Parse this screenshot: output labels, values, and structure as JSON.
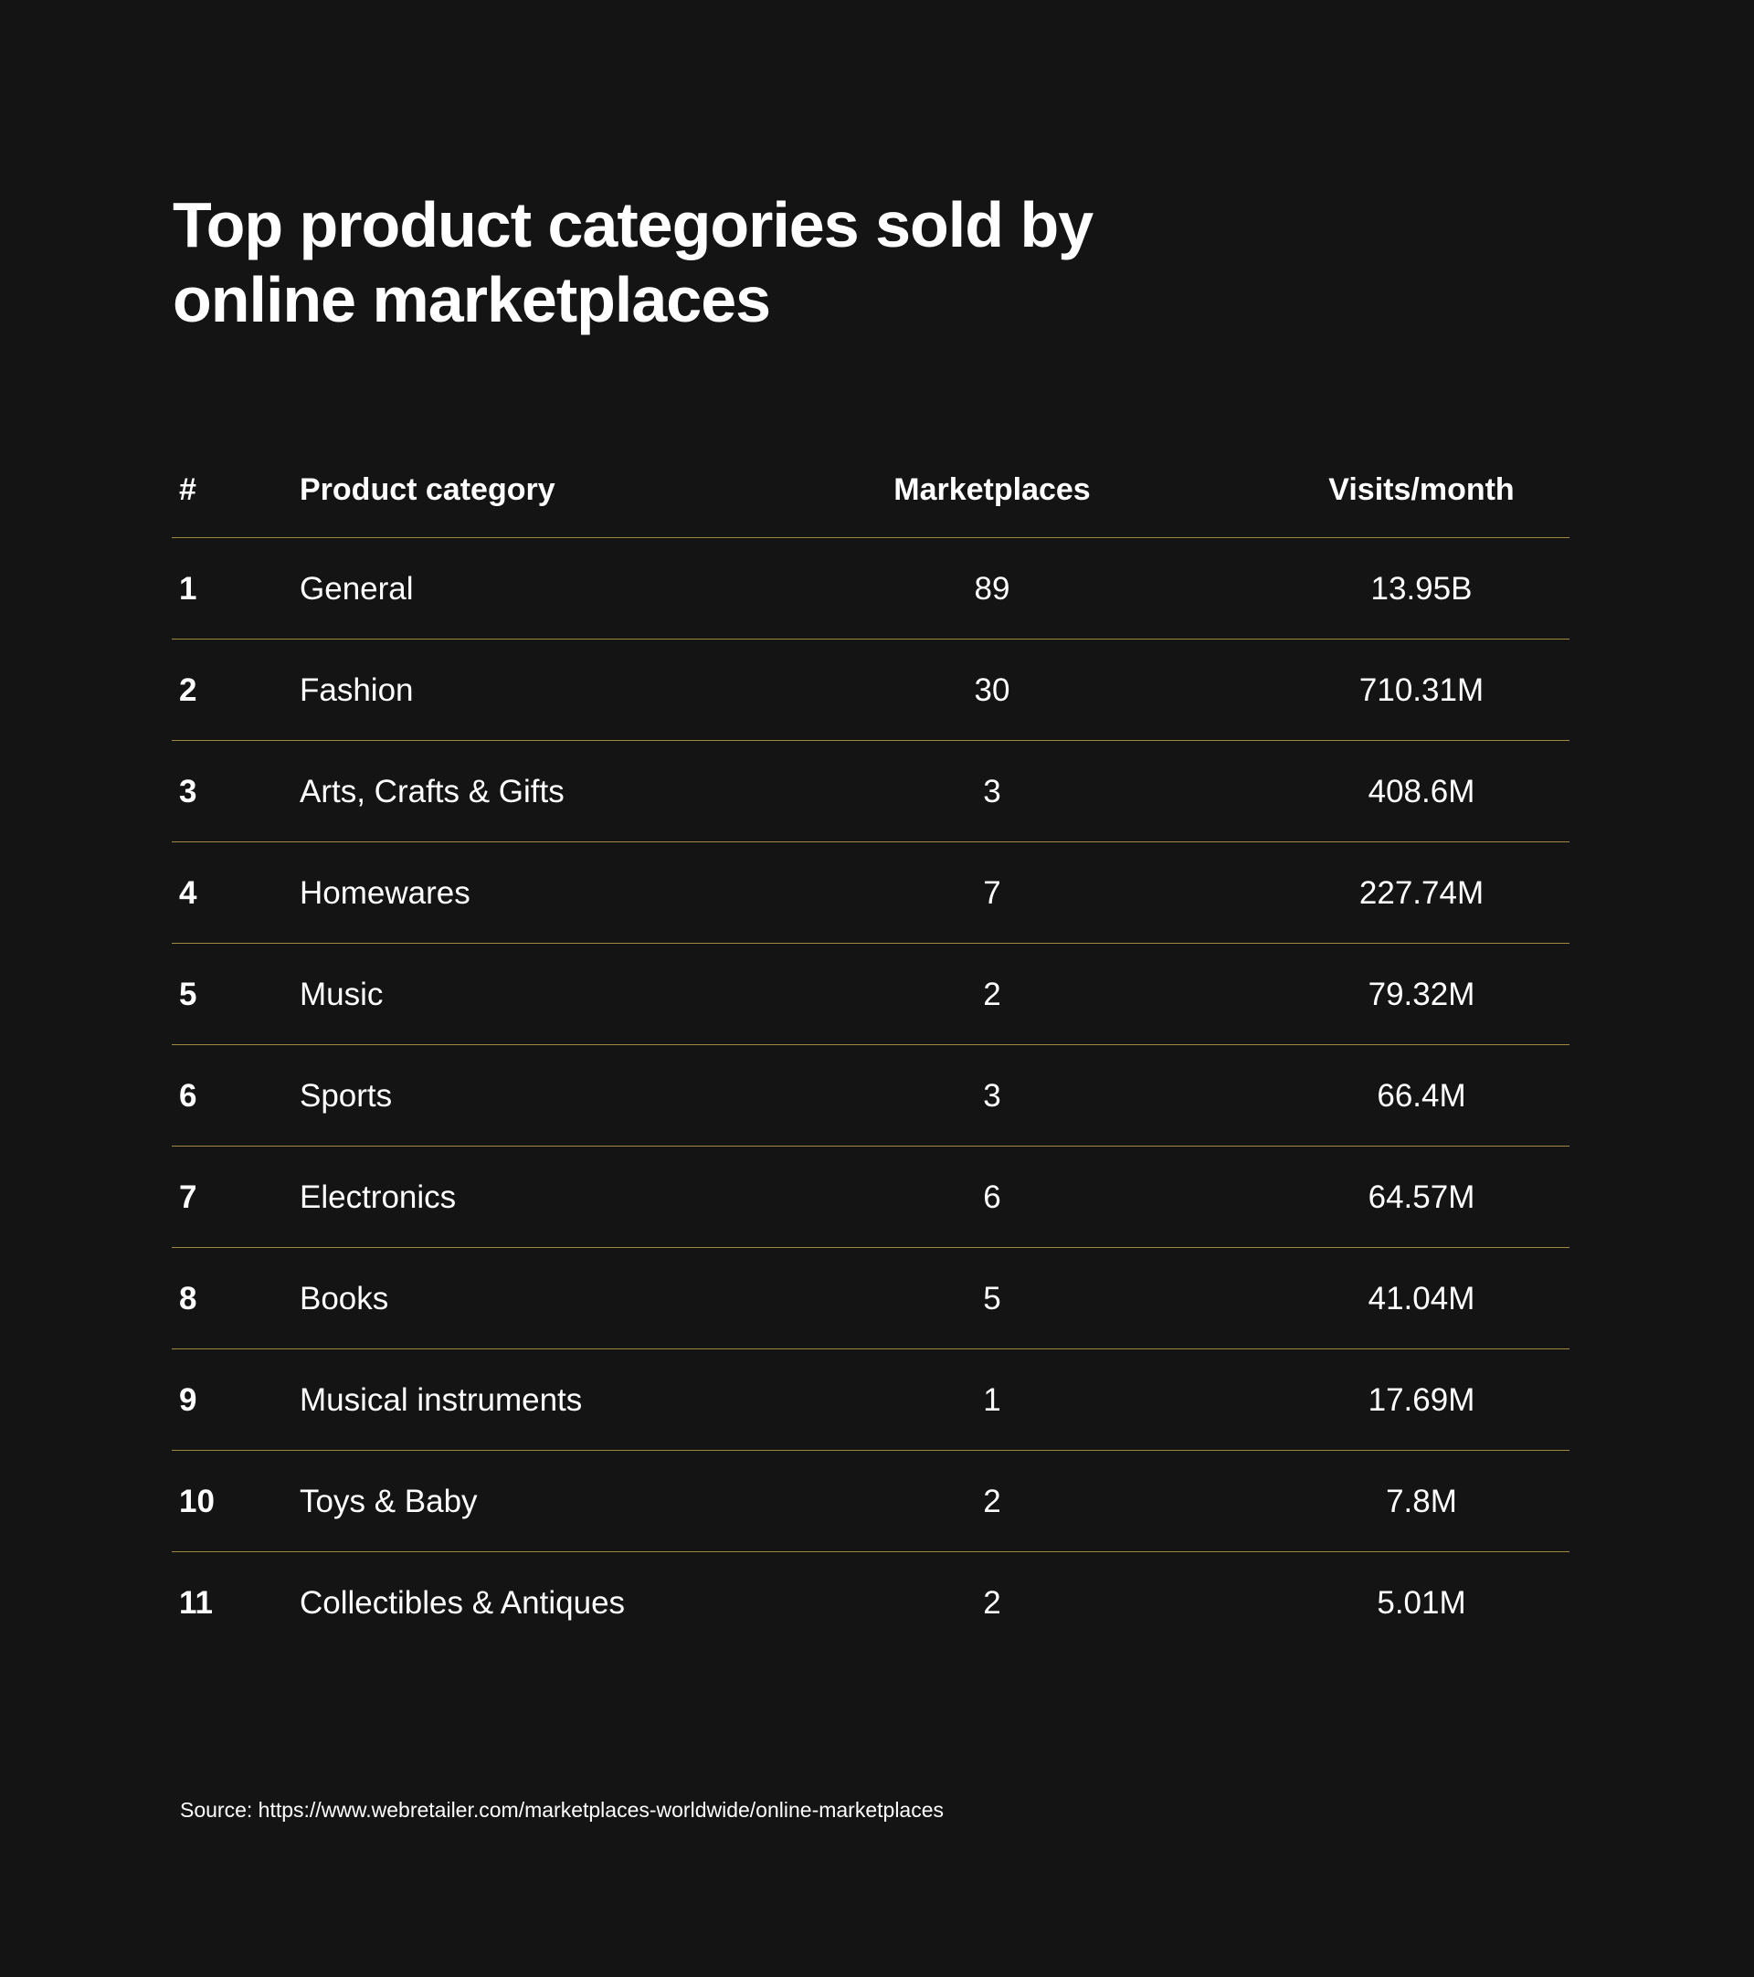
{
  "page": {
    "title": "Top product categories sold by online marketplaces",
    "source": "Source: https://www.webretailer.com/marketplaces-worldwide/online-marketplaces"
  },
  "colors": {
    "background": "#141414",
    "text": "#ffffff",
    "divider": "#a08a3f"
  },
  "chart_data": {
    "type": "table",
    "title": "Top product categories sold by online marketplaces",
    "columns": [
      "#",
      "Product category",
      "Marketplaces",
      "Visits/month"
    ],
    "rows": [
      {
        "rank": "1",
        "category": "General",
        "marketplaces": "89",
        "visits": "13.95B"
      },
      {
        "rank": "2",
        "category": "Fashion",
        "marketplaces": "30",
        "visits": "710.31M"
      },
      {
        "rank": "3",
        "category": "Arts, Crafts & Gifts",
        "marketplaces": "3",
        "visits": "408.6M"
      },
      {
        "rank": "4",
        "category": "Homewares",
        "marketplaces": "7",
        "visits": "227.74M"
      },
      {
        "rank": "5",
        "category": "Music",
        "marketplaces": "2",
        "visits": "79.32M"
      },
      {
        "rank": "6",
        "category": "Sports",
        "marketplaces": "3",
        "visits": "66.4M"
      },
      {
        "rank": "7",
        "category": "Electronics",
        "marketplaces": "6",
        "visits": "64.57M"
      },
      {
        "rank": "8",
        "category": "Books",
        "marketplaces": "5",
        "visits": "41.04M"
      },
      {
        "rank": "9",
        "category": "Musical instruments",
        "marketplaces": "1",
        "visits": "17.69M"
      },
      {
        "rank": "10",
        "category": "Toys & Baby",
        "marketplaces": "2",
        "visits": "7.8M"
      },
      {
        "rank": "11",
        "category": "Collectibles & Antiques",
        "marketplaces": "2",
        "visits": "5.01M"
      }
    ]
  }
}
